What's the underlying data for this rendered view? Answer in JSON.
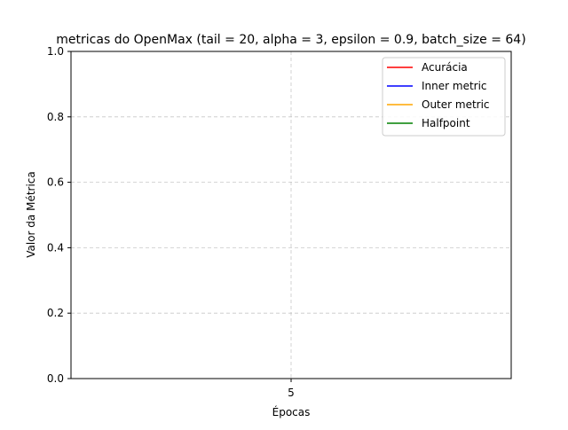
{
  "chart_data": {
    "type": "line",
    "title": "metricas do OpenMax (tail = 20, alpha = 3, epsilon = 0.9, batch_size = 64)",
    "xlabel": "Épocas",
    "ylabel": "Valor da Métrica",
    "x_ticks": [
      "5"
    ],
    "x_tick_values": [
      5
    ],
    "xlim": [
      4.5,
      5.5
    ],
    "ylim": [
      0,
      1
    ],
    "y_ticks": [
      "0.0",
      "0.2",
      "0.4",
      "0.6",
      "0.8",
      "1.0"
    ],
    "y_tick_values": [
      0,
      0.2,
      0.4,
      0.6,
      0.8,
      1.0
    ],
    "grid": true,
    "grid_style": "dashed",
    "legend_position": "top-right",
    "series": [
      {
        "name": "Acurácia",
        "color": "#ff0000",
        "x": [],
        "y": []
      },
      {
        "name": "Inner metric",
        "color": "#0000ff",
        "x": [],
        "y": []
      },
      {
        "name": "Outer metric",
        "color": "#ffa500",
        "x": [],
        "y": []
      },
      {
        "name": "Halfpoint",
        "color": "#008000",
        "x": [],
        "y": []
      }
    ]
  }
}
